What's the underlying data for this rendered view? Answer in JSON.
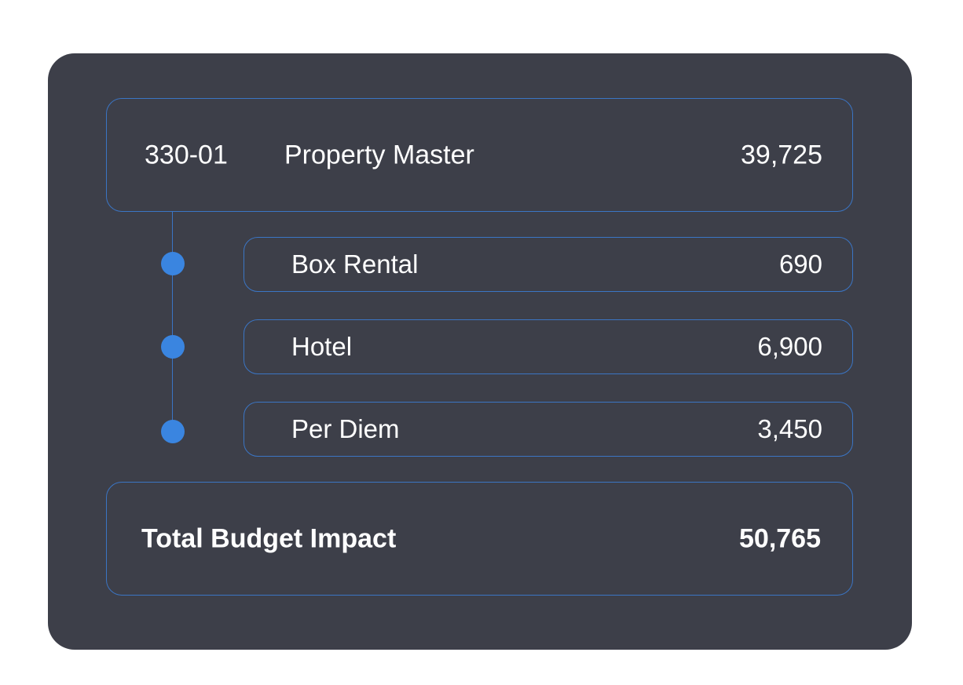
{
  "budget": {
    "account": {
      "code": "330-01",
      "name": "Property Master",
      "amount": "39,725"
    },
    "line_items": [
      {
        "label": "Box Rental",
        "amount": "690"
      },
      {
        "label": "Hotel",
        "amount": "6,900"
      },
      {
        "label": "Per Diem",
        "amount": "3,450"
      }
    ],
    "total": {
      "label": "Total Budget Impact",
      "amount": "50,765"
    }
  },
  "colors": {
    "card_background": "#3d3f49",
    "border_accent": "#3b75c4",
    "dot_accent": "#3a85e0",
    "text": "#ffffff"
  }
}
